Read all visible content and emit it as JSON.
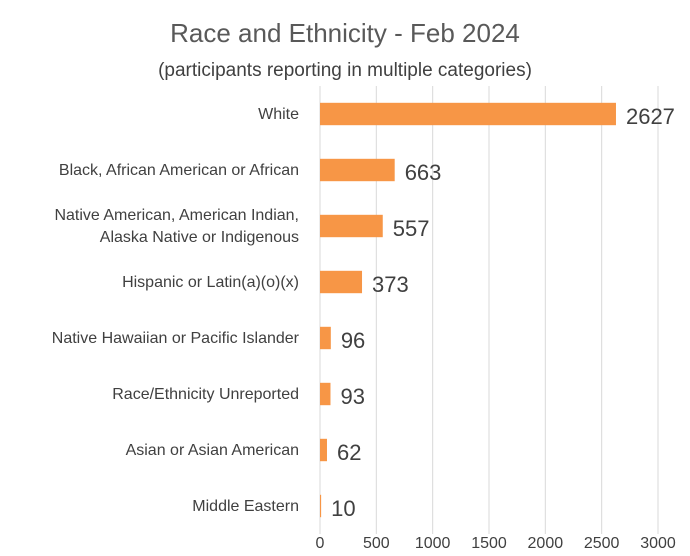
{
  "chart_data": {
    "type": "bar",
    "orientation": "horizontal",
    "title": "Race and Ethnicity - Feb 2024",
    "subtitle": "(participants reporting in multiple categories)",
    "categories": [
      [
        "White"
      ],
      [
        "Black, African American or African"
      ],
      [
        "Native American, American Indian,",
        "Alaska Native or Indigenous"
      ],
      [
        "Hispanic or Latin(a)(o)(x)"
      ],
      [
        "Native Hawaiian or Pacific Islander"
      ],
      [
        "Race/Ethnicity Unreported"
      ],
      [
        "Asian or Asian American"
      ],
      [
        "Middle Eastern"
      ]
    ],
    "values": [
      2627,
      663,
      557,
      373,
      96,
      93,
      62,
      10
    ],
    "xlim": [
      0,
      3000
    ],
    "xticks": [
      0,
      500,
      1000,
      1500,
      2000,
      2500,
      3000
    ],
    "grid": true,
    "legend": "none",
    "bar_color": "#F79646"
  }
}
